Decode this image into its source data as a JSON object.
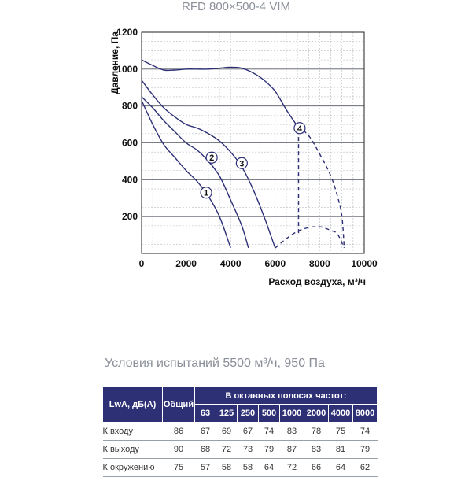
{
  "chart_data": {
    "type": "line",
    "title": "RFD 800×500-4 VIM",
    "xlabel": "Расход воздуха, м³/ч",
    "ylabel": "Давление, Па",
    "xlim": [
      0,
      10000
    ],
    "ylim": [
      0,
      1200
    ],
    "x_ticks": [
      "0",
      "2000",
      "4000",
      "6000",
      "8000",
      "10000"
    ],
    "y_ticks": [
      "200",
      "400",
      "600",
      "800",
      "1000",
      "1200"
    ],
    "grid": true,
    "series": [
      {
        "name": "1",
        "style": "solid",
        "label_at": [
          2900,
          330
        ],
        "points": [
          [
            0,
            830
          ],
          [
            500,
            700
          ],
          [
            1000,
            590
          ],
          [
            1500,
            520
          ],
          [
            2000,
            450
          ],
          [
            2500,
            390
          ],
          [
            3000,
            310
          ],
          [
            3500,
            200
          ],
          [
            4000,
            30
          ]
        ]
      },
      {
        "name": "2",
        "style": "solid",
        "label_at": [
          3150,
          520
        ],
        "points": [
          [
            0,
            850
          ],
          [
            500,
            790
          ],
          [
            1000,
            720
          ],
          [
            1500,
            660
          ],
          [
            2000,
            600
          ],
          [
            2500,
            560
          ],
          [
            3000,
            500
          ],
          [
            3500,
            420
          ],
          [
            4000,
            290
          ],
          [
            4500,
            150
          ],
          [
            4800,
            30
          ]
        ]
      },
      {
        "name": "3",
        "style": "solid",
        "label_at": [
          4500,
          490
        ],
        "points": [
          [
            0,
            940
          ],
          [
            500,
            860
          ],
          [
            1000,
            790
          ],
          [
            1500,
            740
          ],
          [
            2000,
            700
          ],
          [
            2500,
            680
          ],
          [
            3000,
            650
          ],
          [
            3500,
            610
          ],
          [
            4000,
            550
          ],
          [
            4500,
            470
          ],
          [
            5000,
            350
          ],
          [
            5500,
            200
          ],
          [
            6000,
            30
          ]
        ]
      },
      {
        "name": "4",
        "style": "solid",
        "label_at": [
          7100,
          680
        ],
        "points": [
          [
            0,
            1050
          ],
          [
            500,
            1020
          ],
          [
            1000,
            995
          ],
          [
            1500,
            995
          ],
          [
            2000,
            1000
          ],
          [
            2500,
            1000
          ],
          [
            3000,
            1000
          ],
          [
            3500,
            1005
          ],
          [
            4000,
            1010
          ],
          [
            4500,
            1005
          ],
          [
            5000,
            980
          ],
          [
            5500,
            940
          ],
          [
            6000,
            880
          ],
          [
            6500,
            780
          ],
          [
            7000,
            690
          ]
        ]
      },
      {
        "name": "4-ext",
        "style": "dashed",
        "points": [
          [
            7000,
            690
          ],
          [
            7500,
            640
          ],
          [
            8000,
            540
          ],
          [
            8500,
            420
          ],
          [
            8800,
            310
          ],
          [
            9000,
            200
          ],
          [
            9100,
            30
          ]
        ]
      },
      {
        "name": "4-vert",
        "style": "dashed",
        "points": [
          [
            7050,
            670
          ],
          [
            7050,
            110
          ]
        ]
      },
      {
        "name": "lower-arc",
        "style": "dashed",
        "points": [
          [
            6000,
            30
          ],
          [
            6500,
            80
          ],
          [
            7000,
            120
          ],
          [
            7500,
            140
          ],
          [
            8000,
            145
          ],
          [
            8500,
            125
          ],
          [
            8800,
            105
          ],
          [
            9100,
            30
          ]
        ]
      }
    ]
  },
  "conditions": "Условия испытаний 5500 м³/ч, 950 Па",
  "table": {
    "header_label": "LwA, дБ(A)",
    "header_total": "Общий",
    "header_bands": "В октавных полосах частот:",
    "bands": [
      "63",
      "125",
      "250",
      "500",
      "1000",
      "2000",
      "4000",
      "8000"
    ],
    "rows": [
      {
        "label": "К входу",
        "total": "86",
        "values": [
          "67",
          "69",
          "67",
          "74",
          "83",
          "78",
          "75",
          "74"
        ]
      },
      {
        "label": "К выходу",
        "total": "90",
        "values": [
          "68",
          "72",
          "73",
          "79",
          "87",
          "83",
          "81",
          "79"
        ]
      },
      {
        "label": "К окружению",
        "total": "75",
        "values": [
          "57",
          "58",
          "58",
          "64",
          "72",
          "66",
          "64",
          "62"
        ]
      }
    ]
  }
}
